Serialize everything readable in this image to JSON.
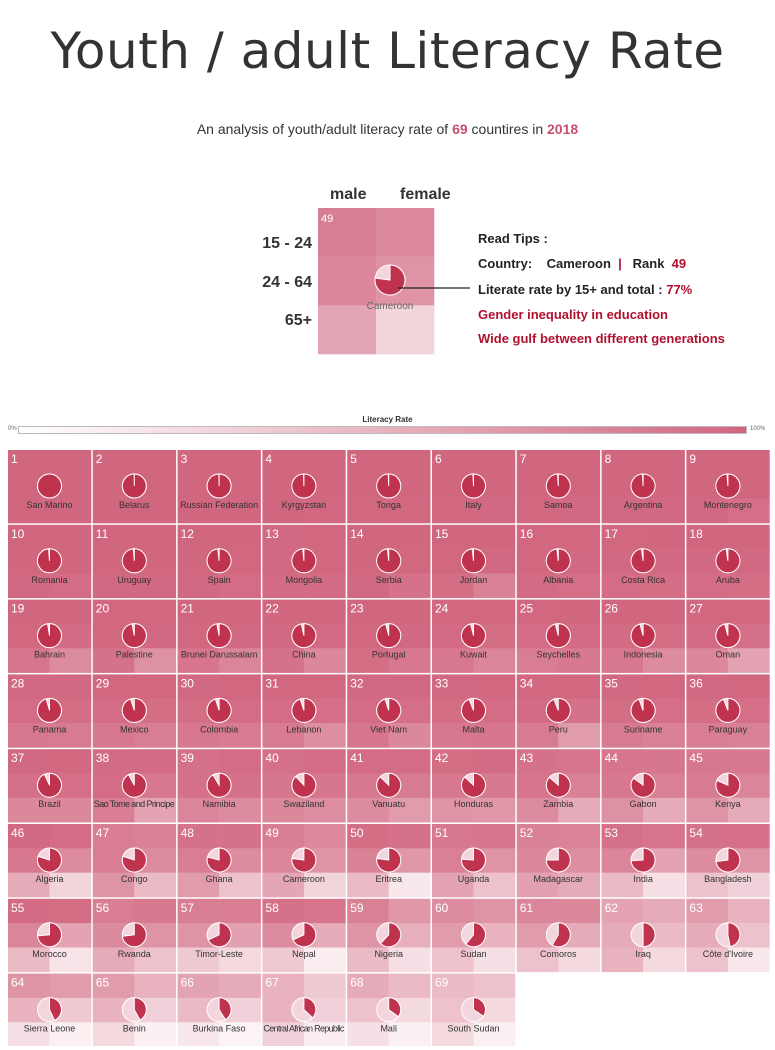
{
  "header": {
    "title": "Youth / adult Literacy Rate",
    "subtitle_pre": "An analysis of youth/adult literacy rate of ",
    "subtitle_count": "69",
    "subtitle_mid": " countires in ",
    "subtitle_year": "2018"
  },
  "legend_example": {
    "col_male": "male",
    "col_female": "female",
    "row_1": "15 - 24",
    "row_2": "24 - 64",
    "row_3": "65+",
    "rank": "49",
    "country": "Cameroon",
    "literate_total": 0.77,
    "cells": [
      0.84,
      0.77,
      0.79,
      0.7,
      0.58,
      0.28
    ]
  },
  "tips": {
    "title": "Read Tips :",
    "country_label": "Country:",
    "country_value": "Cameroon",
    "separator": "|",
    "rank_label": "Rank",
    "rank_value": "49",
    "rate_label": "Literate rate by 15+ and total :",
    "rate_value": "77%",
    "note_1": "Gender inequality in education",
    "note_2": "Wide gulf between different generations"
  },
  "colorbar": {
    "title": "Literacy Rate",
    "min_label": "0%",
    "max_label": "100%",
    "low_color": "#ffffff",
    "high_color": "#d1667f",
    "pie_color": "#c0334f"
  },
  "chart_data": {
    "type": "heatmap",
    "description_fields": [
      "rank",
      "name",
      "cells: male/female for 15-24, 25-64, 65+",
      "total literacy rate 15+"
    ],
    "countries": [
      {
        "rank": "1",
        "name": "San Marino",
        "cells": [
          1,
          1,
          1,
          1,
          1,
          1
        ],
        "total": 1.0
      },
      {
        "rank": "2",
        "name": "Belarus",
        "cells": [
          1,
          1,
          1,
          1,
          1,
          1
        ],
        "total": 0.998
      },
      {
        "rank": "3",
        "name": "Russian Federation",
        "cells": [
          1,
          1,
          1,
          1,
          1,
          1
        ],
        "total": 0.997
      },
      {
        "rank": "4",
        "name": "Kyrgyzstan",
        "cells": [
          1,
          1,
          1,
          1,
          1,
          0.99
        ],
        "total": 0.995
      },
      {
        "rank": "5",
        "name": "Tonga",
        "cells": [
          1,
          1,
          1,
          1,
          0.99,
          0.99
        ],
        "total": 0.994
      },
      {
        "rank": "6",
        "name": "Italy",
        "cells": [
          1,
          1,
          1,
          1,
          0.99,
          0.98
        ],
        "total": 0.992
      },
      {
        "rank": "7",
        "name": "Samoa",
        "cells": [
          1,
          1,
          1,
          1,
          0.99,
          0.98
        ],
        "total": 0.99
      },
      {
        "rank": "8",
        "name": "Argentina",
        "cells": [
          1,
          1,
          1,
          1,
          0.98,
          0.98
        ],
        "total": 0.99
      },
      {
        "rank": "9",
        "name": "Montenegro",
        "cells": [
          1,
          1,
          1,
          1,
          0.98,
          0.94
        ],
        "total": 0.988
      },
      {
        "rank": "10",
        "name": "Romania",
        "cells": [
          1,
          1,
          1,
          1,
          0.98,
          0.96
        ],
        "total": 0.988
      },
      {
        "rank": "11",
        "name": "Uruguay",
        "cells": [
          1,
          1,
          1,
          1,
          0.98,
          0.98
        ],
        "total": 0.986
      },
      {
        "rank": "12",
        "name": "Spain",
        "cells": [
          1,
          1,
          1,
          0.99,
          0.98,
          0.96
        ],
        "total": 0.984
      },
      {
        "rank": "13",
        "name": "Mongolia",
        "cells": [
          0.98,
          0.99,
          0.98,
          0.99,
          0.97,
          0.97
        ],
        "total": 0.984
      },
      {
        "rank": "14",
        "name": "Serbia",
        "cells": [
          1,
          1,
          1,
          0.99,
          0.98,
          0.92
        ],
        "total": 0.984
      },
      {
        "rank": "15",
        "name": "Jordan",
        "cells": [
          1,
          1,
          0.99,
          0.98,
          0.95,
          0.82
        ],
        "total": 0.982
      },
      {
        "rank": "16",
        "name": "Albania",
        "cells": [
          0.99,
          0.99,
          0.99,
          0.98,
          0.97,
          0.94
        ],
        "total": 0.98
      },
      {
        "rank": "17",
        "name": "Costa Rica",
        "cells": [
          0.99,
          1,
          0.98,
          0.98,
          0.96,
          0.95
        ],
        "total": 0.978
      },
      {
        "rank": "18",
        "name": "Aruba",
        "cells": [
          1,
          1,
          0.98,
          0.98,
          0.96,
          0.95
        ],
        "total": 0.977
      },
      {
        "rank": "19",
        "name": "Bahrain",
        "cells": [
          1,
          1,
          0.99,
          0.97,
          0.9,
          0.75
        ],
        "total": 0.975
      },
      {
        "rank": "20",
        "name": "Palestine",
        "cells": [
          0.99,
          0.99,
          0.99,
          0.98,
          0.92,
          0.72
        ],
        "total": 0.97
      },
      {
        "rank": "21",
        "name": "Brunei Darussalam",
        "cells": [
          1,
          1,
          0.99,
          0.98,
          0.9,
          0.8
        ],
        "total": 0.97
      },
      {
        "rank": "22",
        "name": "China",
        "cells": [
          1,
          1,
          0.98,
          0.97,
          0.92,
          0.78
        ],
        "total": 0.965
      },
      {
        "rank": "23",
        "name": "Portugal",
        "cells": [
          1,
          1,
          0.99,
          0.98,
          0.95,
          0.88
        ],
        "total": 0.96
      },
      {
        "rank": "24",
        "name": "Kuwait",
        "cells": [
          0.99,
          0.99,
          0.97,
          0.95,
          0.88,
          0.8
        ],
        "total": 0.96
      },
      {
        "rank": "25",
        "name": "Seychelles",
        "cells": [
          0.99,
          1,
          0.96,
          0.97,
          0.85,
          0.87
        ],
        "total": 0.959
      },
      {
        "rank": "26",
        "name": "Indonesia",
        "cells": [
          1,
          1,
          0.97,
          0.95,
          0.88,
          0.75
        ],
        "total": 0.957
      },
      {
        "rank": "27",
        "name": "Oman",
        "cells": [
          0.99,
          0.99,
          0.97,
          0.93,
          0.78,
          0.6
        ],
        "total": 0.957
      },
      {
        "rank": "28",
        "name": "Panama",
        "cells": [
          0.98,
          0.98,
          0.96,
          0.95,
          0.88,
          0.86
        ],
        "total": 0.955
      },
      {
        "rank": "29",
        "name": "Mexico",
        "cells": [
          0.99,
          0.99,
          0.96,
          0.95,
          0.88,
          0.84
        ],
        "total": 0.95
      },
      {
        "rank": "30",
        "name": "Colombia",
        "cells": [
          0.98,
          0.99,
          0.95,
          0.96,
          0.88,
          0.86
        ],
        "total": 0.95
      },
      {
        "rank": "31",
        "name": "Lebanon",
        "cells": [
          0.99,
          0.99,
          0.96,
          0.94,
          0.86,
          0.74
        ],
        "total": 0.95
      },
      {
        "rank": "32",
        "name": "Viet Nam",
        "cells": [
          0.98,
          0.98,
          0.96,
          0.94,
          0.9,
          0.78
        ],
        "total": 0.95
      },
      {
        "rank": "33",
        "name": "Malta",
        "cells": [
          0.98,
          0.99,
          0.95,
          0.96,
          0.88,
          0.9
        ],
        "total": 0.94
      },
      {
        "rank": "34",
        "name": "Peru",
        "cells": [
          0.99,
          0.99,
          0.97,
          0.92,
          0.86,
          0.65
        ],
        "total": 0.94
      },
      {
        "rank": "35",
        "name": "Suriname",
        "cells": [
          0.98,
          0.99,
          0.95,
          0.94,
          0.86,
          0.82
        ],
        "total": 0.944
      },
      {
        "rank": "36",
        "name": "Paraguay",
        "cells": [
          0.98,
          0.99,
          0.95,
          0.94,
          0.85,
          0.82
        ],
        "total": 0.94
      },
      {
        "rank": "37",
        "name": "Brazil",
        "cells": [
          0.98,
          0.99,
          0.93,
          0.94,
          0.78,
          0.78
        ],
        "total": 0.93
      },
      {
        "rank": "38",
        "name": "Sao Tome and Principe",
        "cells": [
          0.97,
          0.97,
          0.96,
          0.88,
          0.85,
          0.6
        ],
        "total": 0.92
      },
      {
        "rank": "39",
        "name": "Namibia",
        "cells": [
          0.93,
          0.96,
          0.92,
          0.92,
          0.8,
          0.75
        ],
        "total": 0.915
      },
      {
        "rank": "40",
        "name": "Swaziland",
        "cells": [
          0.93,
          0.96,
          0.89,
          0.89,
          0.78,
          0.74
        ],
        "total": 0.88
      },
      {
        "rank": "41",
        "name": "Vanuatu",
        "cells": [
          0.96,
          0.96,
          0.88,
          0.86,
          0.75,
          0.65
        ],
        "total": 0.875
      },
      {
        "rank": "42",
        "name": "Honduras",
        "cells": [
          0.95,
          0.97,
          0.88,
          0.87,
          0.7,
          0.68
        ],
        "total": 0.87
      },
      {
        "rank": "43",
        "name": "Zambia",
        "cells": [
          0.92,
          0.9,
          0.9,
          0.82,
          0.75,
          0.55
        ],
        "total": 0.865
      },
      {
        "rank": "44",
        "name": "Gabon",
        "cells": [
          0.9,
          0.89,
          0.88,
          0.83,
          0.72,
          0.55
        ],
        "total": 0.85
      },
      {
        "rank": "45",
        "name": "Kenya",
        "cells": [
          0.88,
          0.88,
          0.86,
          0.8,
          0.7,
          0.55
        ],
        "total": 0.815
      },
      {
        "rank": "46",
        "name": "Algeria",
        "cells": [
          0.98,
          0.96,
          0.88,
          0.75,
          0.55,
          0.28
        ],
        "total": 0.8
      },
      {
        "rank": "47",
        "name": "Congo",
        "cells": [
          0.85,
          0.82,
          0.85,
          0.75,
          0.7,
          0.45
        ],
        "total": 0.8
      },
      {
        "rank": "48",
        "name": "Ghana",
        "cells": [
          0.92,
          0.92,
          0.85,
          0.75,
          0.65,
          0.4
        ],
        "total": 0.79
      },
      {
        "rank": "49",
        "name": "Cameroon",
        "cells": [
          0.84,
          0.77,
          0.79,
          0.7,
          0.58,
          0.28
        ],
        "total": 0.77
      },
      {
        "rank": "50",
        "name": "Eritrea",
        "cells": [
          0.95,
          0.92,
          0.82,
          0.68,
          0.45,
          0.15
        ],
        "total": 0.77
      },
      {
        "rank": "51",
        "name": "Uganda",
        "cells": [
          0.88,
          0.9,
          0.83,
          0.7,
          0.6,
          0.4
        ],
        "total": 0.76
      },
      {
        "rank": "52",
        "name": "Madagascar",
        "cells": [
          0.82,
          0.81,
          0.78,
          0.74,
          0.62,
          0.55
        ],
        "total": 0.75
      },
      {
        "rank": "53",
        "name": "India",
        "cells": [
          0.93,
          0.9,
          0.8,
          0.6,
          0.45,
          0.2
        ],
        "total": 0.74
      },
      {
        "rank": "54",
        "name": "Bangladesh",
        "cells": [
          0.92,
          0.94,
          0.75,
          0.7,
          0.4,
          0.3
        ],
        "total": 0.73
      },
      {
        "rank": "55",
        "name": "Morocco",
        "cells": [
          0.97,
          0.95,
          0.8,
          0.6,
          0.45,
          0.18
        ],
        "total": 0.735
      },
      {
        "rank": "56",
        "name": "Rwanda",
        "cells": [
          0.85,
          0.87,
          0.76,
          0.7,
          0.55,
          0.4
        ],
        "total": 0.73
      },
      {
        "rank": "57",
        "name": "Timor-Leste",
        "cells": [
          0.84,
          0.85,
          0.7,
          0.62,
          0.35,
          0.25
        ],
        "total": 0.68
      },
      {
        "rank": "58",
        "name": "Nepal",
        "cells": [
          0.92,
          0.9,
          0.75,
          0.55,
          0.35,
          0.12
        ],
        "total": 0.68
      },
      {
        "rank": "59",
        "name": "Nigeria",
        "cells": [
          0.82,
          0.68,
          0.7,
          0.52,
          0.45,
          0.2
        ],
        "total": 0.62
      },
      {
        "rank": "60",
        "name": "Sudan",
        "cells": [
          0.75,
          0.7,
          0.65,
          0.5,
          0.4,
          0.2
        ],
        "total": 0.61
      },
      {
        "rank": "61",
        "name": "Comoros",
        "cells": [
          0.8,
          0.78,
          0.65,
          0.55,
          0.4,
          0.25
        ],
        "total": 0.585
      },
      {
        "rank": "62",
        "name": "Iraq",
        "cells": [
          0.6,
          0.55,
          0.55,
          0.45,
          0.5,
          0.25
        ],
        "total": 0.5
      },
      {
        "rank": "63",
        "name": "Côte d'Ivoire",
        "cells": [
          0.65,
          0.5,
          0.55,
          0.4,
          0.4,
          0.15
        ],
        "total": 0.47
      },
      {
        "rank": "64",
        "name": "Sierra Leone",
        "cells": [
          0.7,
          0.65,
          0.5,
          0.35,
          0.2,
          0.1
        ],
        "total": 0.43
      },
      {
        "rank": "65",
        "name": "Benin",
        "cells": [
          0.65,
          0.5,
          0.5,
          0.3,
          0.25,
          0.1
        ],
        "total": 0.42
      },
      {
        "rank": "66",
        "name": "Burkina Faso",
        "cells": [
          0.6,
          0.55,
          0.45,
          0.3,
          0.15,
          0.08
        ],
        "total": 0.41
      },
      {
        "rank": "67",
        "name": "Central African Republic",
        "cells": [
          0.5,
          0.35,
          0.5,
          0.3,
          0.3,
          0.12
        ],
        "total": 0.37
      },
      {
        "rank": "68",
        "name": "Mali",
        "cells": [
          0.55,
          0.45,
          0.4,
          0.25,
          0.2,
          0.1
        ],
        "total": 0.35
      },
      {
        "rank": "69",
        "name": "South Sudan",
        "cells": [
          0.45,
          0.4,
          0.4,
          0.25,
          0.25,
          0.1
        ],
        "total": 0.345
      }
    ]
  }
}
